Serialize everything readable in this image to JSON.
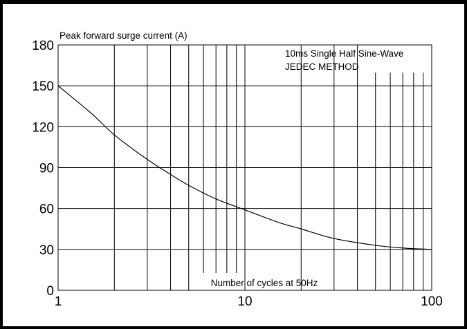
{
  "colors": {
    "frame": "#000000",
    "background": "#ffffff",
    "line": "#000000"
  },
  "chart_data": {
    "type": "line",
    "title": "",
    "ylabel": "Peak forward surge current (A)",
    "xlabel": "Number of cycles at 50Hz",
    "xscale": "log",
    "xlim": [
      1,
      100
    ],
    "ylim": [
      0,
      180
    ],
    "xticks": [
      1,
      10,
      100
    ],
    "xtick_labels": [
      "1",
      "10",
      "100"
    ],
    "yticks": [
      0,
      30,
      60,
      90,
      120,
      150,
      180
    ],
    "ytick_labels": [
      "0",
      "30",
      "60",
      "90",
      "120",
      "150",
      "180"
    ],
    "grid": true,
    "annotations": [
      "10ms Single Half Sine-Wave",
      "JEDEC METHOD"
    ],
    "series": [
      {
        "x": [
          1,
          1.5,
          2,
          3,
          4,
          5,
          7,
          10,
          15,
          20,
          30,
          50,
          70,
          100
        ],
        "y": [
          150,
          130,
          114,
          96,
          85,
          77,
          67,
          59,
          50,
          45,
          38,
          33,
          31,
          30
        ]
      }
    ]
  }
}
